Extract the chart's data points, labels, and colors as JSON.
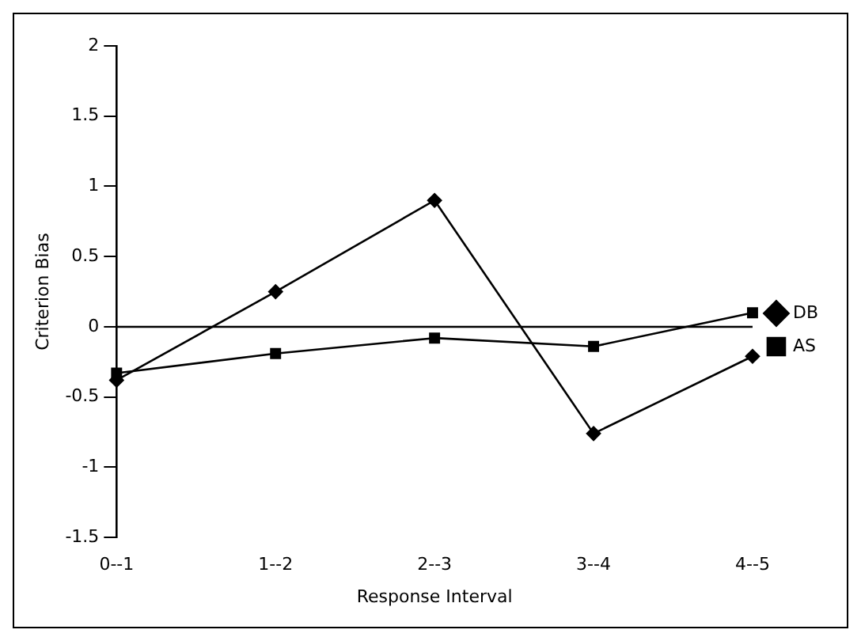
{
  "chart_data": {
    "type": "line",
    "xlabel": "Response Interval",
    "ylabel": "Criterion Bias",
    "categories": [
      "0--1",
      "1--2",
      "2--3",
      "3--4",
      "4--5"
    ],
    "series": [
      {
        "name": "DB",
        "color": "#000000",
        "marker": "diamond",
        "values": [
          -0.38,
          0.25,
          0.9,
          -0.76,
          -0.21
        ]
      },
      {
        "name": "AS",
        "color": "#000000",
        "marker": "square",
        "values": [
          -0.33,
          -0.19,
          -0.08,
          -0.14,
          0.1
        ]
      }
    ],
    "ylim": [
      -1.5,
      2
    ],
    "yticks": [
      -1.5,
      -1,
      -0.5,
      0,
      0.5,
      1,
      1.5,
      2
    ],
    "grid": false,
    "ref_lines": [
      {
        "axis": "y",
        "value": 0
      }
    ],
    "legend": "right",
    "line_style": "solid"
  }
}
